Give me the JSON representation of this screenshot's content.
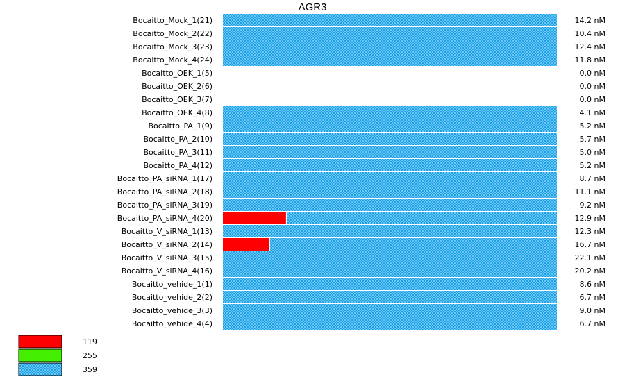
{
  "chart_data": {
    "type": "bar",
    "orientation": "horizontal",
    "stacked": true,
    "title": "AGR3",
    "categories": [
      "Bocaitto_Mock_1(21)",
      "Bocaitto_Mock_2(22)",
      "Bocaitto_Mock_3(23)",
      "Bocaitto_Mock_4(24)",
      "Bocaitto_OEK_1(5)",
      "Bocaitto_OEK_2(6)",
      "Bocaitto_OEK_3(7)",
      "Bocaitto_OEK_4(8)",
      "Bocaitto_PA_1(9)",
      "Bocaitto_PA_2(10)",
      "Bocaitto_PA_3(11)",
      "Bocaitto_PA_4(12)",
      "Bocaitto_PA_siRNA_1(17)",
      "Bocaitto_PA_siRNA_2(18)",
      "Bocaitto_PA_siRNA_3(19)",
      "Bocaitto_PA_siRNA_4(20)",
      "Bocaitto_V_siRNA_1(13)",
      "Bocaitto_V_siRNA_2(14)",
      "Bocaitto_V_siRNA_3(15)",
      "Bocaitto_V_siRNA_4(16)",
      "Bocaitto_vehide_1(1)",
      "Bocaitto_vehide_2(2)",
      "Bocaitto_vehide_3(3)",
      "Bocaitto_vehide_4(4)"
    ],
    "value_labels": [
      "14.2 nM",
      "10.4 nM",
      "12.4 nM",
      "11.8 nM",
      "0.0 nM",
      "0.0 nM",
      "0.0 nM",
      "4.1 nM",
      "5.2 nM",
      "5.7 nM",
      "5.0 nM",
      "5.2 nM",
      "8.7 nM",
      "11.1 nM",
      "9.2 nM",
      "12.9 nM",
      "12.3 nM",
      "16.7 nM",
      "22.1 nM",
      "20.2 nM",
      "8.6 nM",
      "6.7 nM",
      "9.0 nM",
      "6.7 nM"
    ],
    "series": [
      {
        "name": "119",
        "color": "#ff0000",
        "pattern": "solid",
        "fractions": [
          0,
          0,
          0,
          0,
          0,
          0,
          0,
          0,
          0,
          0,
          0,
          0,
          0,
          0,
          0,
          0.19,
          0,
          0.14,
          0,
          0,
          0,
          0,
          0,
          0
        ]
      },
      {
        "name": "255",
        "color": "#44ee00",
        "pattern": "solid",
        "fractions": [
          0,
          0,
          0,
          0,
          0,
          0,
          0,
          0,
          0,
          0,
          0,
          0,
          0,
          0,
          0,
          0,
          0,
          0,
          0,
          0,
          0,
          0,
          0,
          0
        ]
      },
      {
        "name": "359",
        "color": "#1ea0e6",
        "pattern": "checker",
        "fractions": [
          1,
          1,
          1,
          1,
          0,
          0,
          0,
          1,
          1,
          1,
          1,
          1,
          1,
          1,
          1,
          0.81,
          1,
          0.86,
          1,
          1,
          1,
          1,
          1,
          1
        ]
      }
    ],
    "legend": [
      {
        "label": "119",
        "color": "#ff0000",
        "pattern": "solid"
      },
      {
        "label": "255",
        "color": "#44ee00",
        "pattern": "solid"
      },
      {
        "label": "359",
        "color": "#1ea0e6",
        "pattern": "checker"
      }
    ],
    "legend_position": "bottom-left",
    "grid": false
  }
}
